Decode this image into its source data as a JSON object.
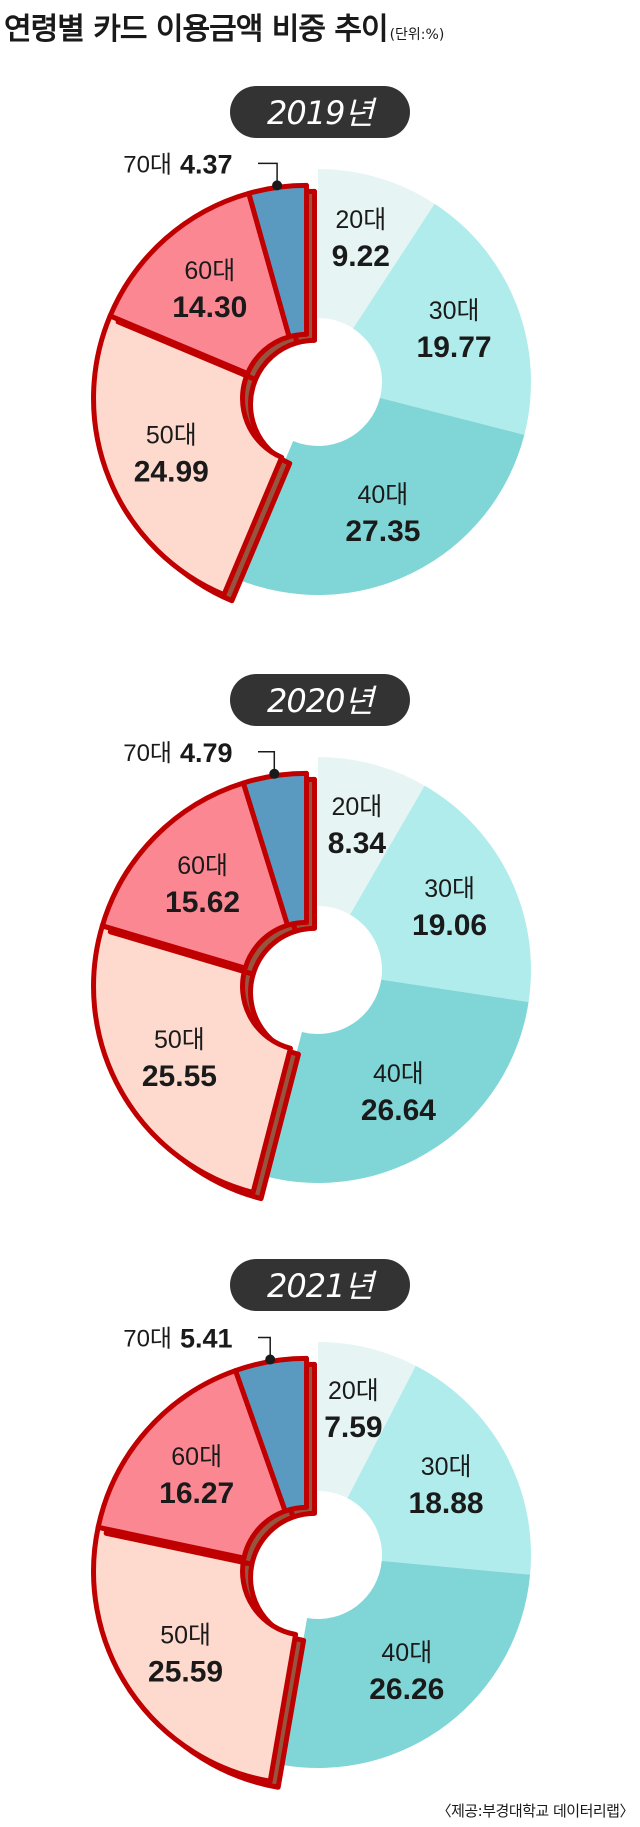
{
  "header": {
    "title": "연령별 카드 이용금액 비중 추이",
    "unit": "(단위:%)"
  },
  "footer": {
    "source": "〈제공:부경대학교 데이터리랩〉"
  },
  "colors": {
    "20대": "#e6f5f4",
    "30대": "#b1ecec",
    "40대": "#80d6d7",
    "50대": "#fdd9ce",
    "60대": "#fb8793",
    "70대": "#5a9ac1",
    "outline": "#c00000",
    "shadow": "#975540",
    "year_badge": "#333333"
  },
  "chart_data": [
    {
      "type": "pie",
      "year": "2019년",
      "categories": [
        "20대",
        "30대",
        "40대",
        "50대",
        "60대",
        "70대"
      ],
      "values": [
        9.22,
        19.77,
        27.35,
        24.99,
        14.3,
        4.37
      ],
      "value_labels": [
        "9.22",
        "19.77",
        "27.35",
        "24.99",
        "14.30",
        "4.37"
      ]
    },
    {
      "type": "pie",
      "year": "2020년",
      "categories": [
        "20대",
        "30대",
        "40대",
        "50대",
        "60대",
        "70대"
      ],
      "values": [
        8.34,
        19.06,
        26.64,
        25.55,
        15.62,
        4.79
      ],
      "value_labels": [
        "8.34",
        "19.06",
        "26.64",
        "25.55",
        "15.62",
        "4.79"
      ]
    },
    {
      "type": "pie",
      "year": "2021년",
      "categories": [
        "20대",
        "30대",
        "40대",
        "50대",
        "60대",
        "70대"
      ],
      "values": [
        7.59,
        18.88,
        26.26,
        25.59,
        16.27,
        5.41
      ],
      "value_labels": [
        "7.59",
        "18.88",
        "26.26",
        "25.59",
        "16.27",
        "5.41"
      ]
    }
  ]
}
